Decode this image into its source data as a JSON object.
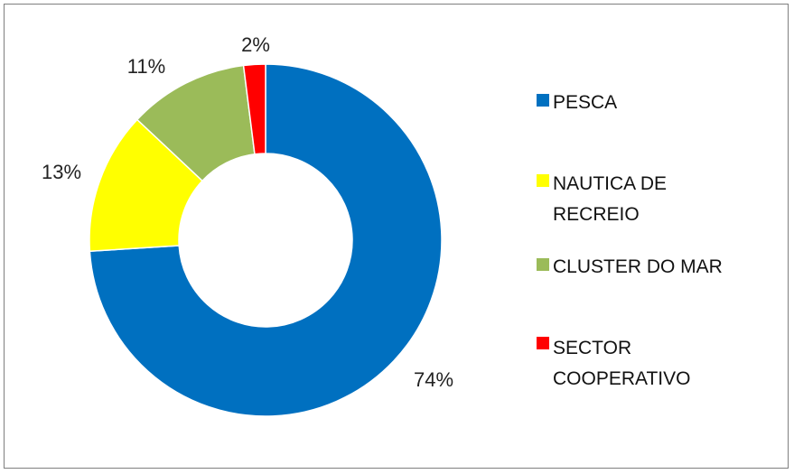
{
  "chart_data": {
    "type": "pie",
    "variant": "donut",
    "title": "",
    "categories": [
      "PESCA",
      "NAUTICA DE RECREIO",
      "CLUSTER DO MAR",
      "SECTOR COOPERATIVO"
    ],
    "values": [
      74,
      13,
      11,
      2
    ],
    "value_labels": [
      "74%",
      "13%",
      "11%",
      "2%"
    ],
    "colors": [
      "#0070c0",
      "#ffff00",
      "#9bbb59",
      "#ff0000"
    ],
    "legend_position": "right",
    "legend_lines": [
      [
        " PESCA"
      ],
      [
        " NAUTICA DE",
        "RECREIO"
      ],
      [
        " CLUSTER DO MAR"
      ],
      [
        "SECTOR",
        "COOPERATIVO"
      ]
    ]
  }
}
